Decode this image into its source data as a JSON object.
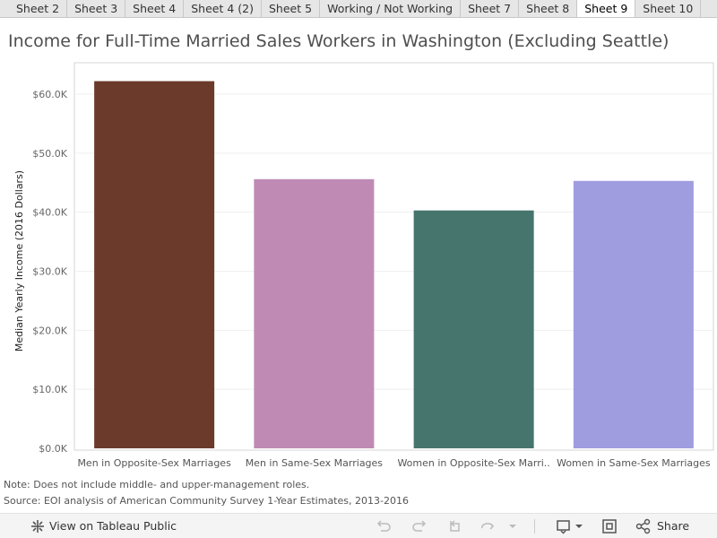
{
  "tabs": [
    {
      "label": "Sheet 2",
      "active": false
    },
    {
      "label": "Sheet 3",
      "active": false
    },
    {
      "label": "Sheet 4",
      "active": false
    },
    {
      "label": "Sheet 4 (2)",
      "active": false
    },
    {
      "label": "Sheet 5",
      "active": false
    },
    {
      "label": "Working / Not Working",
      "active": false
    },
    {
      "label": "Sheet 7",
      "active": false
    },
    {
      "label": "Sheet 8",
      "active": false
    },
    {
      "label": "Sheet 9",
      "active": true
    },
    {
      "label": "Sheet 10",
      "active": false
    }
  ],
  "chart_data": {
    "type": "bar",
    "title": "Income for Full-Time Married Sales Workers in Washington (Excluding Seattle)",
    "ylabel": "Median Yearly Income (2016 Dollars)",
    "xlabel": "",
    "categories": [
      "Men in Opposite-Sex Marriages",
      "Men in Same-Sex Marriages",
      "Women in Opposite-Sex Marri..",
      "Women in Same-Sex Marriages"
    ],
    "values": [
      62200,
      45600,
      40300,
      45300
    ],
    "colors": [
      "#6b3a2a",
      "#bf8bb5",
      "#46756d",
      "#a09ce0"
    ],
    "ylim": [
      0,
      65000
    ],
    "yticks": [
      0,
      10000,
      20000,
      30000,
      40000,
      50000,
      60000
    ],
    "ytick_labels": [
      "$0.0K",
      "$10.0K",
      "$20.0K",
      "$30.0K",
      "$40.0K",
      "$50.0K",
      "$60.0K"
    ],
    "grid": true
  },
  "notes": {
    "note": "Note: Does not include middle- and upper-management roles.",
    "source": "Source: EOI analysis of American Community Survey 1-Year Estimates, 2013-2016"
  },
  "footer": {
    "view_label": "View on Tableau Public",
    "share_label": "Share",
    "icons": [
      "tableau-logo-icon",
      "undo-icon",
      "redo-icon",
      "revert-icon",
      "refresh-icon",
      "download-icon",
      "fullscreen-icon",
      "share-icon"
    ]
  }
}
